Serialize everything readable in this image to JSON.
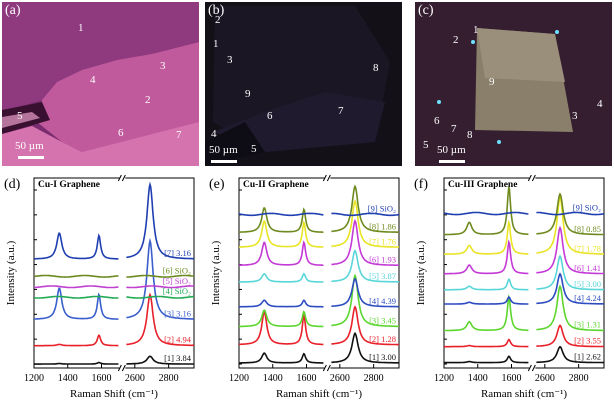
{
  "photos": [
    {
      "id": "a",
      "letter": "(a)",
      "scale_label": "50 µm",
      "region_labels": [
        "1",
        "3",
        "4",
        "2",
        "5",
        "6",
        "7"
      ]
    },
    {
      "id": "b",
      "letter": "(b)",
      "scale_label": "50 µm",
      "region_labels": [
        "2",
        "1",
        "3",
        "8",
        "9",
        "7",
        "6",
        "4",
        "5"
      ]
    },
    {
      "id": "c",
      "letter": "(c)",
      "scale_label": "50 µm",
      "region_labels": [
        "1",
        "2",
        "9",
        "3",
        "4",
        "6",
        "7",
        "8",
        "5"
      ]
    }
  ],
  "chart_data": [
    {
      "panel": "(d)",
      "type": "line",
      "title": "Cu-I Graphene",
      "xlabel": "Raman Shift (cm⁻¹)",
      "ylabel": "Intensity (a.u.)",
      "x_ticks": [
        "1200",
        "1400",
        "1600",
        "2600",
        "2800"
      ],
      "x_segments": [
        [
          1200,
          1700
        ],
        [
          2550,
          2950
        ]
      ],
      "axis_break": true,
      "peaks": {
        "D": 1350,
        "G": 1585,
        "2D": 2690
      },
      "series": [
        {
          "name": "[1] 3.84",
          "color": "#111111",
          "offset": 0,
          "graphene": true,
          "D": 0.02,
          "G": 0.06,
          "G2D": 0.3
        },
        {
          "name": "[2] 4.94",
          "color": "#e8202a",
          "offset": 0.7,
          "graphene": true,
          "D": 0.05,
          "G": 0.4,
          "G2D": 1.95
        },
        {
          "name": "[3] 3.16",
          "color": "#3a5fcd",
          "offset": 1.7,
          "graphene": true,
          "D": 1.2,
          "G": 0.95,
          "G2D": 3.0
        },
        {
          "name": "[4] SiO₂",
          "color": "#22aa55",
          "offset": 2.55,
          "graphene": false
        },
        {
          "name": "[5] SiO₂",
          "color": "#c040d0",
          "offset": 2.95,
          "graphene": false
        },
        {
          "name": "[6] SiO₂",
          "color": "#6a8a20",
          "offset": 3.35,
          "graphene": false
        },
        {
          "name": "[7] 3.16",
          "color": "#1f3fb0",
          "offset": 4.0,
          "graphene": true,
          "D": 1.0,
          "G": 0.9,
          "G2D": 2.85
        }
      ]
    },
    {
      "panel": "(e)",
      "type": "line",
      "title": "Cu-II Graphene",
      "xlabel": "Raman shift (cm⁻¹)",
      "ylabel": "Intensity (a.u.)",
      "x_ticks": [
        "1200",
        "1400",
        "1600",
        "2600",
        "2800"
      ],
      "x_segments": [
        [
          1200,
          1700
        ],
        [
          2550,
          2950
        ]
      ],
      "axis_break": true,
      "peaks": {
        "D": 1350,
        "G": 1585,
        "2D": 2690
      },
      "series": [
        {
          "name": "[1] 3.00",
          "color": "#111111",
          "offset": 0,
          "graphene": true,
          "D": 0.3,
          "G": 0.28,
          "G2D": 0.9
        },
        {
          "name": "[2] 1.28",
          "color": "#e8202a",
          "offset": 0.55,
          "graphene": true,
          "D": 1.0,
          "G": 0.9,
          "G2D": 1.15
        },
        {
          "name": "[3] 3.45",
          "color": "#5cd62e",
          "offset": 1.1,
          "graphene": true,
          "D": 0.5,
          "G": 0.45,
          "G2D": 1.55
        },
        {
          "name": "[4] 4.39",
          "color": "#2c4cc0",
          "offset": 1.7,
          "graphene": true,
          "D": 0.2,
          "G": 0.2,
          "G2D": 0.85
        },
        {
          "name": "[5] 3.87",
          "color": "#59d6d8",
          "offset": 2.45,
          "graphene": true,
          "D": 0.25,
          "G": 0.25,
          "G2D": 0.95
        },
        {
          "name": "[6] 1.93",
          "color": "#c43ad6",
          "offset": 2.95,
          "graphene": true,
          "D": 0.7,
          "G": 0.7,
          "G2D": 1.35
        },
        {
          "name": "[7] 1.76",
          "color": "#e9e425",
          "offset": 3.5,
          "graphene": true,
          "D": 0.8,
          "G": 0.75,
          "G2D": 1.4
        },
        {
          "name": "[8] 1.86",
          "color": "#6e8a1e",
          "offset": 3.95,
          "graphene": true,
          "D": 0.75,
          "G": 0.7,
          "G2D": 1.4
        },
        {
          "name": "[9] SiO₂",
          "color": "#1f3fb0",
          "offset": 4.5,
          "graphene": false
        }
      ]
    },
    {
      "panel": "(f)",
      "type": "line",
      "title": "Cu-III Graphene",
      "xlabel": "Raman shift (cm⁻¹)",
      "ylabel": "Intensity (a.u.)",
      "x_ticks": [
        "1200",
        "1400",
        "1600",
        "2600",
        "2800"
      ],
      "x_segments": [
        [
          1200,
          1700
        ],
        [
          2550,
          2950
        ]
      ],
      "axis_break": true,
      "peaks": {
        "D": 1350,
        "G": 1585,
        "2D": 2690
      },
      "series": [
        {
          "name": "[1] 2.62",
          "color": "#111111",
          "offset": 0,
          "graphene": true,
          "D": 0.03,
          "G": 0.18,
          "G2D": 0.45
        },
        {
          "name": "[2] 3.55",
          "color": "#e8202a",
          "offset": 0.45,
          "graphene": true,
          "D": 0.03,
          "G": 0.2,
          "G2D": 0.6
        },
        {
          "name": "[3] 1.31",
          "color": "#5cd62e",
          "offset": 0.9,
          "graphene": true,
          "D": 0.25,
          "G": 0.95,
          "G2D": 1.25
        },
        {
          "name": "[4] 4.24",
          "color": "#2c4cc0",
          "offset": 1.65,
          "graphene": true,
          "D": 0.05,
          "G": 0.2,
          "G2D": 0.85
        },
        {
          "name": "[5] 3.00",
          "color": "#59d6d8",
          "offset": 2.05,
          "graphene": true,
          "D": 0.1,
          "G": 0.3,
          "G2D": 0.95
        },
        {
          "name": "[6] 1.41",
          "color": "#c43ad6",
          "offset": 2.5,
          "graphene": true,
          "D": 0.25,
          "G": 0.9,
          "G2D": 1.3
        },
        {
          "name": "[7] 1.78",
          "color": "#e9e425",
          "offset": 3.05,
          "graphene": true,
          "D": 0.25,
          "G": 0.9,
          "G2D": 1.6
        },
        {
          "name": "[8] 0.85",
          "color": "#6e8a1e",
          "offset": 3.6,
          "graphene": true,
          "D": 0.35,
          "G": 1.35,
          "G2D": 1.15
        },
        {
          "name": "[9] SiO₂",
          "color": "#1f3fb0",
          "offset": 4.2,
          "graphene": false
        }
      ]
    }
  ]
}
